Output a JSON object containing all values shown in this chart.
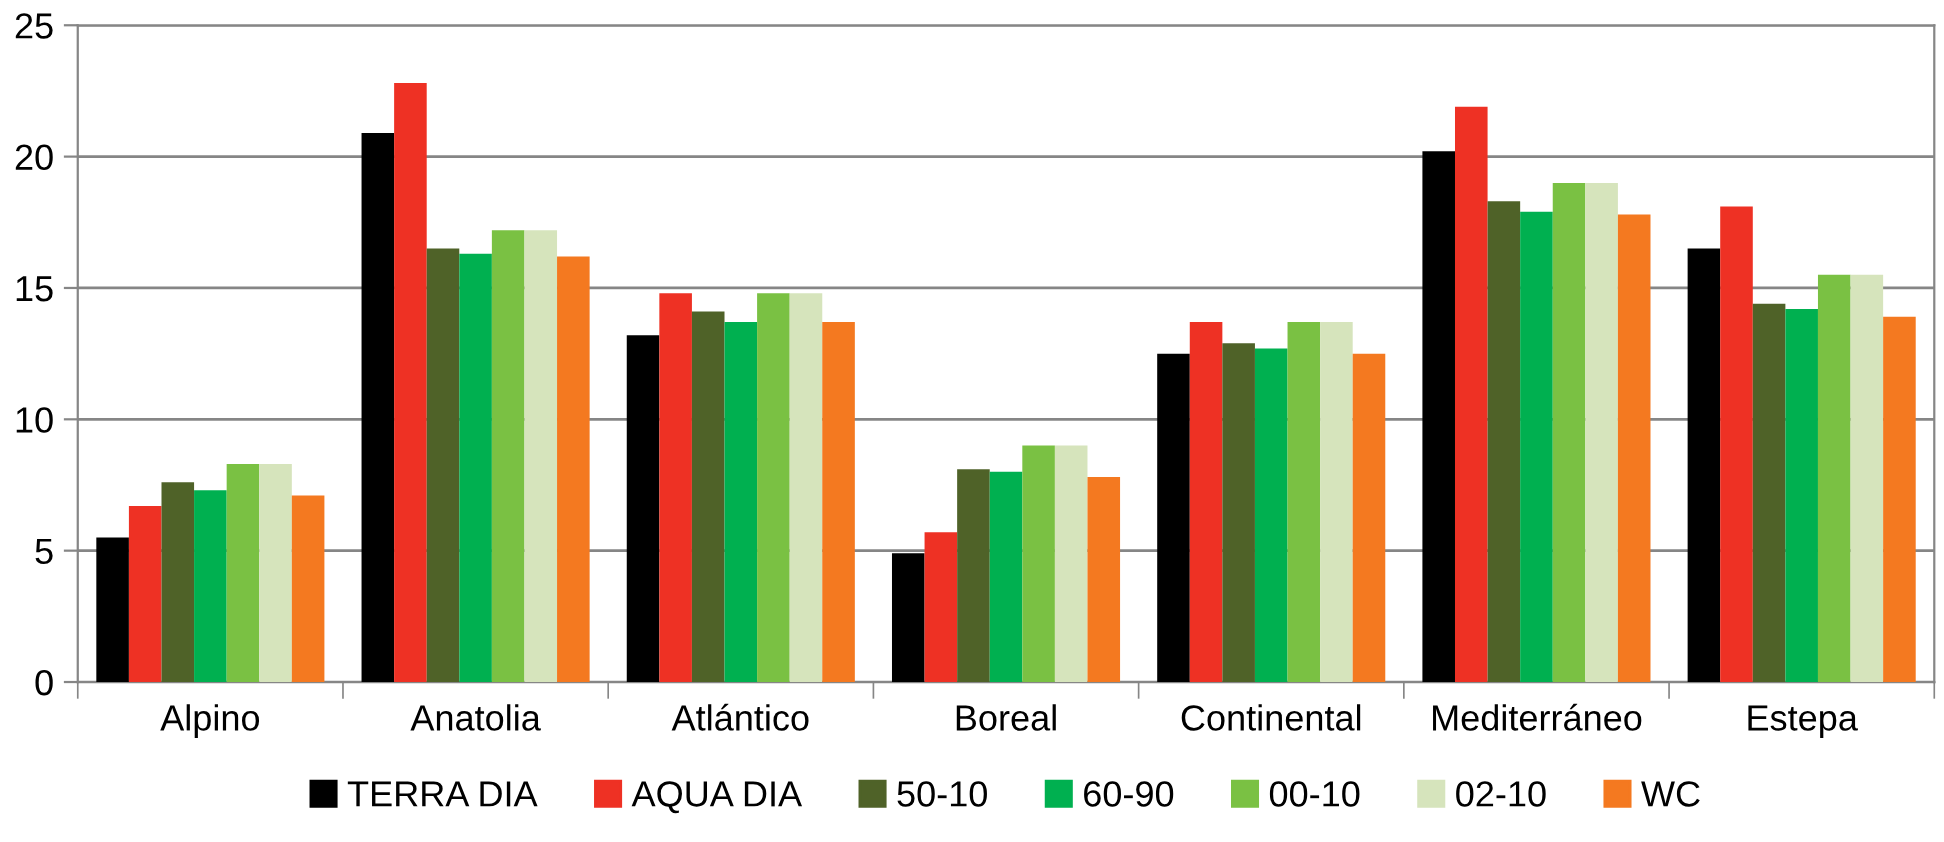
{
  "chart_data": {
    "type": "bar",
    "categories": [
      "Alpino",
      "Anatolia",
      "Atlántico",
      "Boreal",
      "Continental",
      "Mediterráneo",
      "Estepa"
    ],
    "series": [
      {
        "name": "TERRA DIA",
        "color": "#000000",
        "values": [
          5.5,
          20.9,
          13.2,
          4.9,
          12.5,
          20.2,
          16.5
        ]
      },
      {
        "name": "AQUA DIA",
        "color": "#ee3124",
        "values": [
          6.7,
          22.8,
          14.8,
          5.7,
          13.7,
          21.9,
          18.1
        ]
      },
      {
        "name": "50-10",
        "color": "#4f6228",
        "values": [
          7.6,
          16.5,
          14.1,
          8.1,
          12.9,
          18.3,
          14.4
        ]
      },
      {
        "name": "60-90",
        "color": "#00b050",
        "values": [
          7.3,
          16.3,
          13.7,
          8.0,
          12.7,
          17.9,
          14.2
        ]
      },
      {
        "name": "00-10",
        "color": "#7ac143",
        "values": [
          8.3,
          17.2,
          14.8,
          9.0,
          13.7,
          19.0,
          15.5
        ]
      },
      {
        "name": "02-10",
        "color": "#d6e4bc",
        "values": [
          8.3,
          17.2,
          14.8,
          9.0,
          13.7,
          19.0,
          15.5
        ]
      },
      {
        "name": "WC",
        "color": "#f47920",
        "values": [
          7.1,
          16.2,
          13.7,
          7.8,
          12.5,
          17.8,
          13.9
        ]
      }
    ],
    "ylim": [
      0,
      25
    ],
    "yticks": [
      0,
      5,
      10,
      15,
      20,
      25
    ],
    "grid": "y",
    "legend": "bottom"
  }
}
